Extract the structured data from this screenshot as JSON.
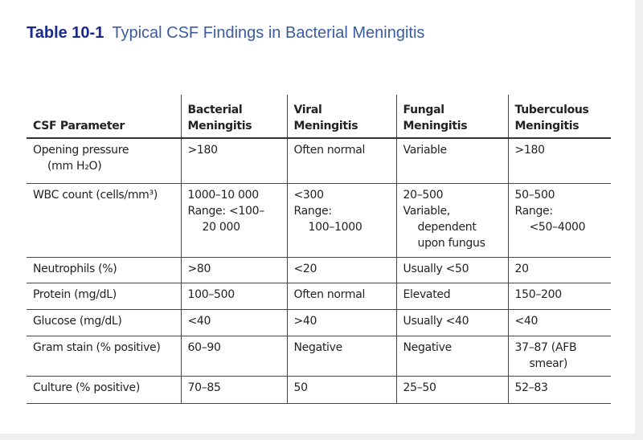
{
  "header": {
    "label": "Table 10-1",
    "title": "Typical CSF Findings in Bacterial Meningitis"
  },
  "table": {
    "columns": [
      [
        "CSF Parameter"
      ],
      [
        "Bacterial",
        "Meningitis"
      ],
      [
        "Viral",
        "Meningitis"
      ],
      [
        "Fungal",
        "Meningitis"
      ],
      [
        "Tuberculous",
        "Meningitis"
      ]
    ],
    "rows": [
      [
        [
          "Opening pressure",
          "(mm H₂O)"
        ],
        [
          ">180"
        ],
        [
          "Often normal"
        ],
        [
          "Variable"
        ],
        [
          ">180"
        ]
      ],
      [
        [
          "WBC count (cells/mm³)"
        ],
        [
          "1000–10 000",
          "Range: <100–",
          "20 000"
        ],
        [
          "<300",
          "Range:",
          "100–1000"
        ],
        [
          "20–500",
          "Variable,",
          "dependent",
          "upon fungus"
        ],
        [
          "50–500",
          "Range:",
          "<50–4000"
        ]
      ],
      [
        [
          "Neutrophils (%)"
        ],
        [
          ">80"
        ],
        [
          "<20"
        ],
        [
          "Usually <50"
        ],
        [
          "20"
        ]
      ],
      [
        [
          "Protein (mg/dL)"
        ],
        [
          "100–500"
        ],
        [
          "Often normal"
        ],
        [
          "Elevated"
        ],
        [
          "150–200"
        ]
      ],
      [
        [
          "Glucose (mg/dL)"
        ],
        [
          "<40"
        ],
        [
          ">40"
        ],
        [
          "Usually <40"
        ],
        [
          "<40"
        ]
      ],
      [
        [
          "Gram stain (% positive)"
        ],
        [
          "60–90"
        ],
        [
          "Negative"
        ],
        [
          "Negative"
        ],
        [
          "37–87 (AFB",
          "smear)"
        ]
      ],
      [
        [
          "Culture (% positive)"
        ],
        [
          "70–85"
        ],
        [
          "50"
        ],
        [
          "25–50"
        ],
        [
          "52–83"
        ]
      ]
    ]
  }
}
